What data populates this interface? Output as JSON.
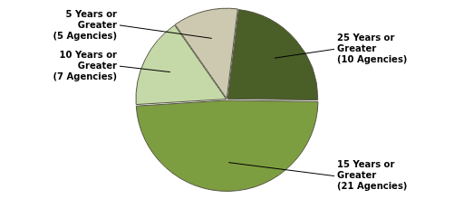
{
  "chart_data": {
    "type": "pie",
    "values": [
      10,
      21,
      7,
      5
    ],
    "colors": [
      "#4a5e28",
      "#7d9e40",
      "#c5d9a8",
      "#cdc9b0"
    ],
    "annotations": [
      "25 Years or\nGreater\n(10 Agencies)",
      "15 Years or\nGreater\n(21 Agencies)",
      "10 Years or\nGreater\n(7 Agencies)",
      "5 Years or\nGreater\n(5 Agencies)"
    ]
  }
}
